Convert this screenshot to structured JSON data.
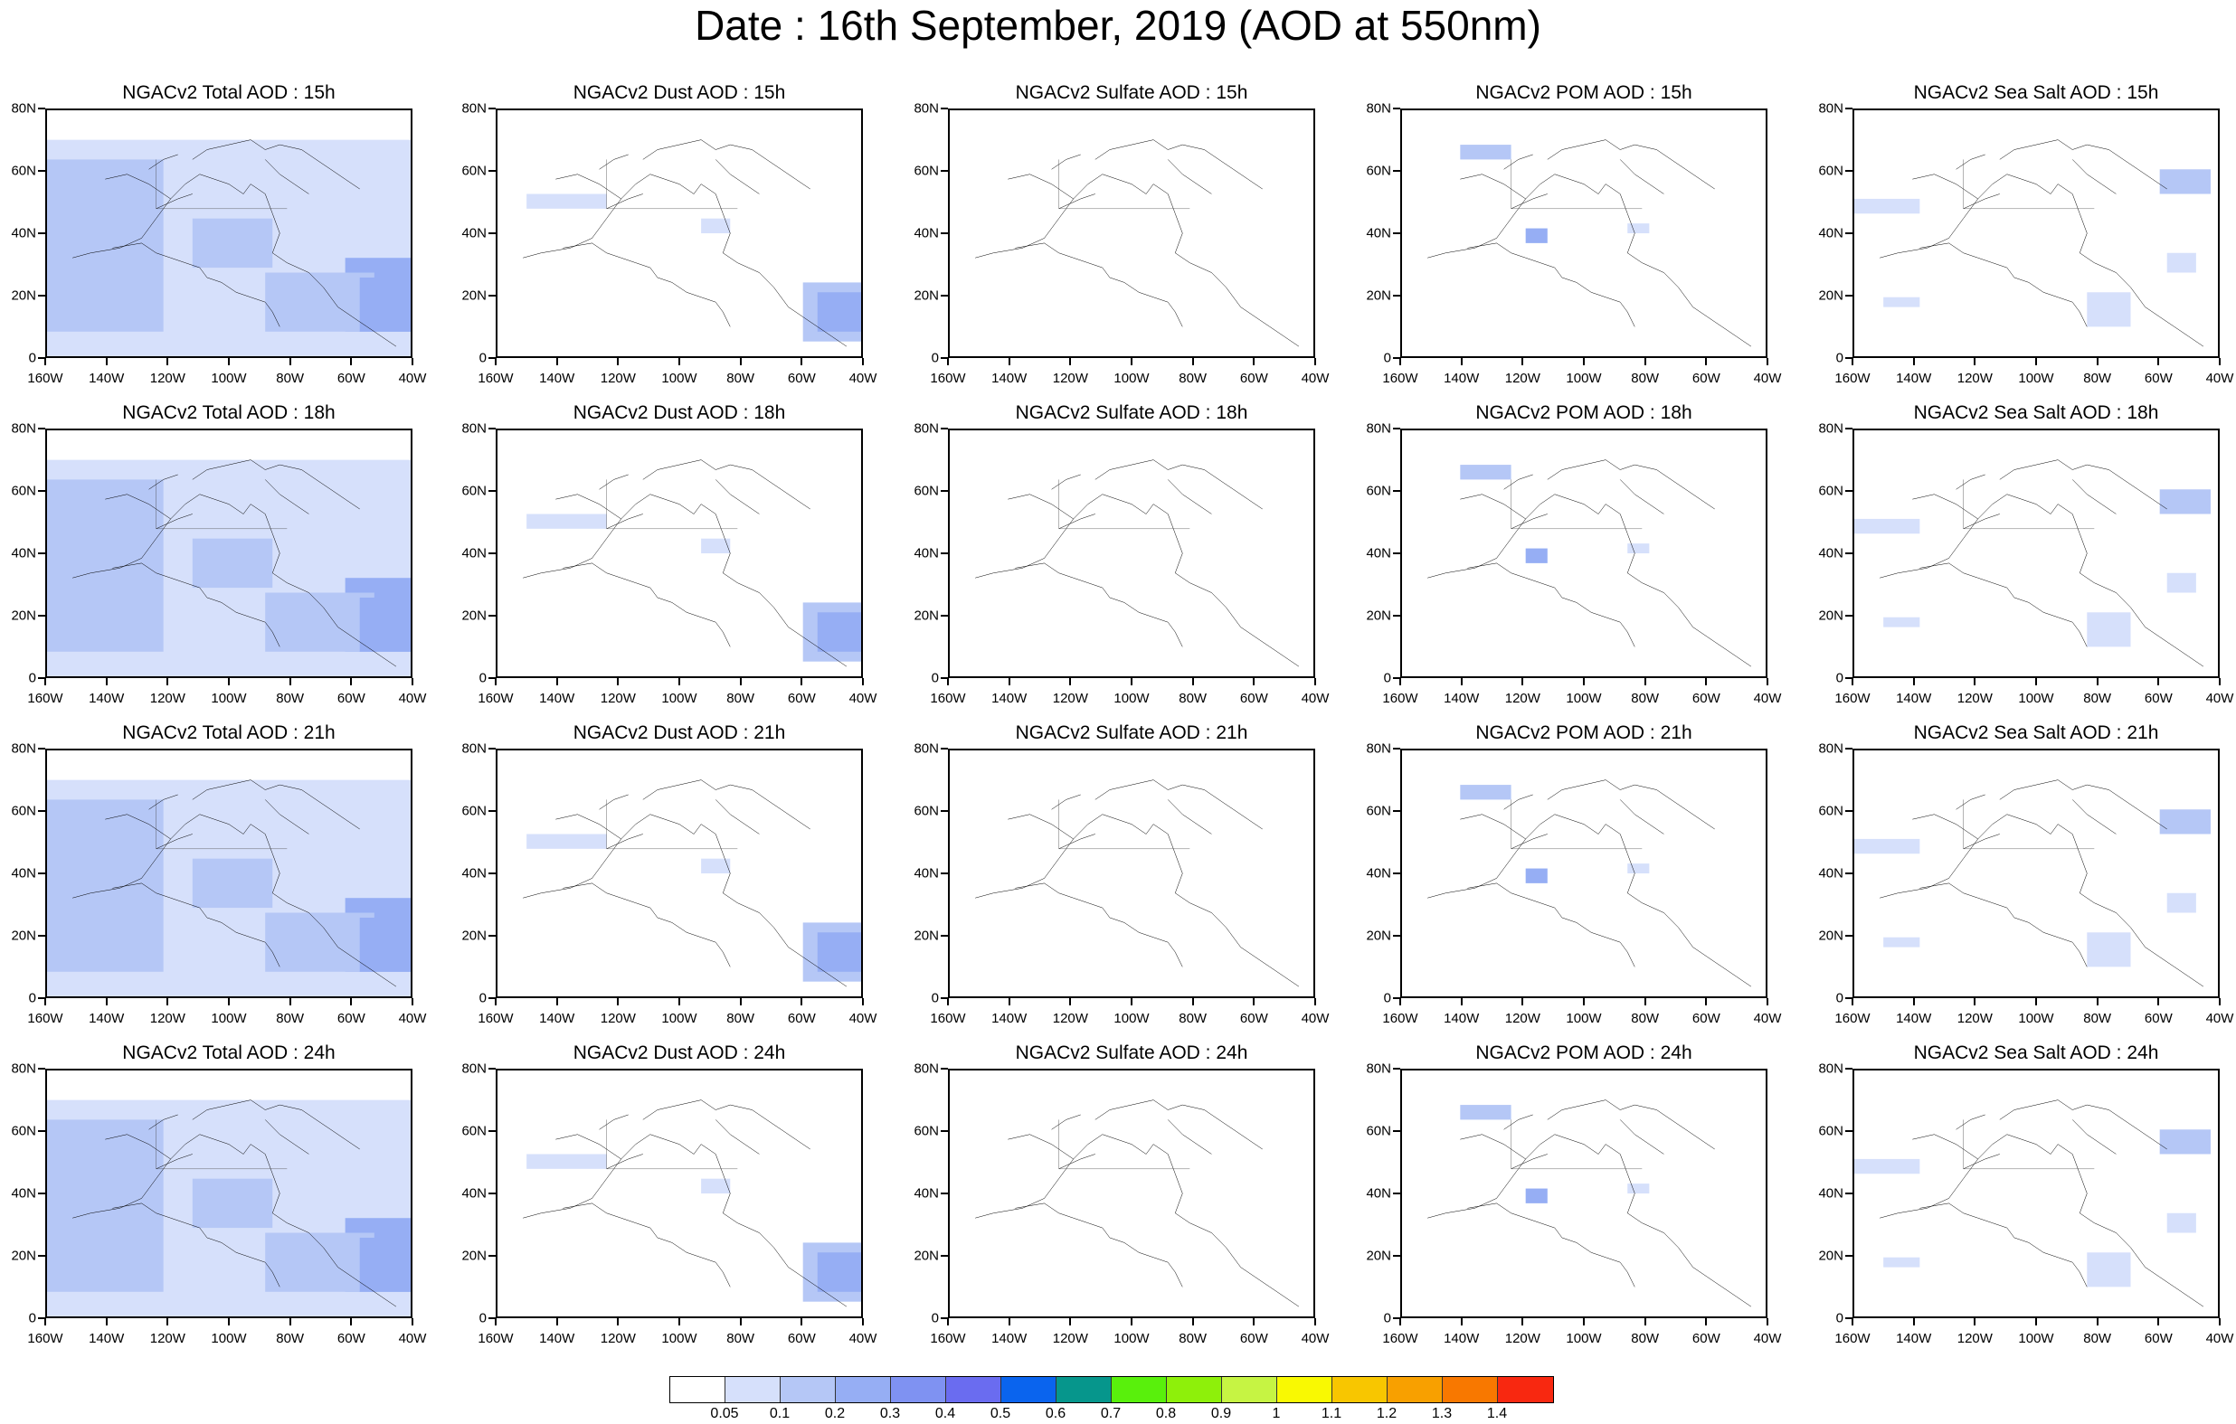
{
  "title": "Date : 16th September, 2019 (AOD at 550nm)",
  "y_ticks": [
    "80N",
    "60N",
    "40N",
    "20N",
    "0"
  ],
  "x_ticks": [
    "160W",
    "140W",
    "120W",
    "100W",
    "80W",
    "60W",
    "40W"
  ],
  "rows": [
    [
      "NGACv2 Total AOD : 15h",
      "NGACv2 Dust AOD : 15h",
      "NGACv2 Sulfate AOD : 15h",
      "NGACv2 POM AOD : 15h",
      "NGACv2 Sea Salt AOD : 15h"
    ],
    [
      "NGACv2 Total AOD : 18h",
      "NGACv2 Dust AOD : 18h",
      "NGACv2 Sulfate AOD : 18h",
      "NGACv2 POM AOD : 18h",
      "NGACv2 Sea Salt AOD : 18h"
    ],
    [
      "NGACv2 Total AOD : 21h",
      "NGACv2 Dust AOD : 21h",
      "NGACv2 Sulfate AOD : 21h",
      "NGACv2 POM AOD : 21h",
      "NGACv2 Sea Salt AOD : 21h"
    ],
    [
      "NGACv2 Total AOD : 24h",
      "NGACv2 Dust AOD : 24h",
      "NGACv2 Sulfate AOD : 24h",
      "NGACv2 POM AOD : 24h",
      "NGACv2 Sea Salt  AOD : 24h"
    ]
  ],
  "colorbar": {
    "labels": [
      "0.05",
      "0.1",
      "0.2",
      "0.3",
      "0.4",
      "0.5",
      "0.6",
      "0.7",
      "0.8",
      "0.9",
      "1",
      "1.1",
      "1.2",
      "1.3",
      "1.4"
    ],
    "colors": [
      "#ffffff",
      "#d6e0fb",
      "#b5c7f6",
      "#96aef4",
      "#7f92f2",
      "#6a6cf0",
      "#0a64ee",
      "#06968c",
      "#59f00c",
      "#8ef00a",
      "#c6f443",
      "#f9f902",
      "#f8c600",
      "#f8a000",
      "#f87800",
      "#f82810"
    ]
  }
}
